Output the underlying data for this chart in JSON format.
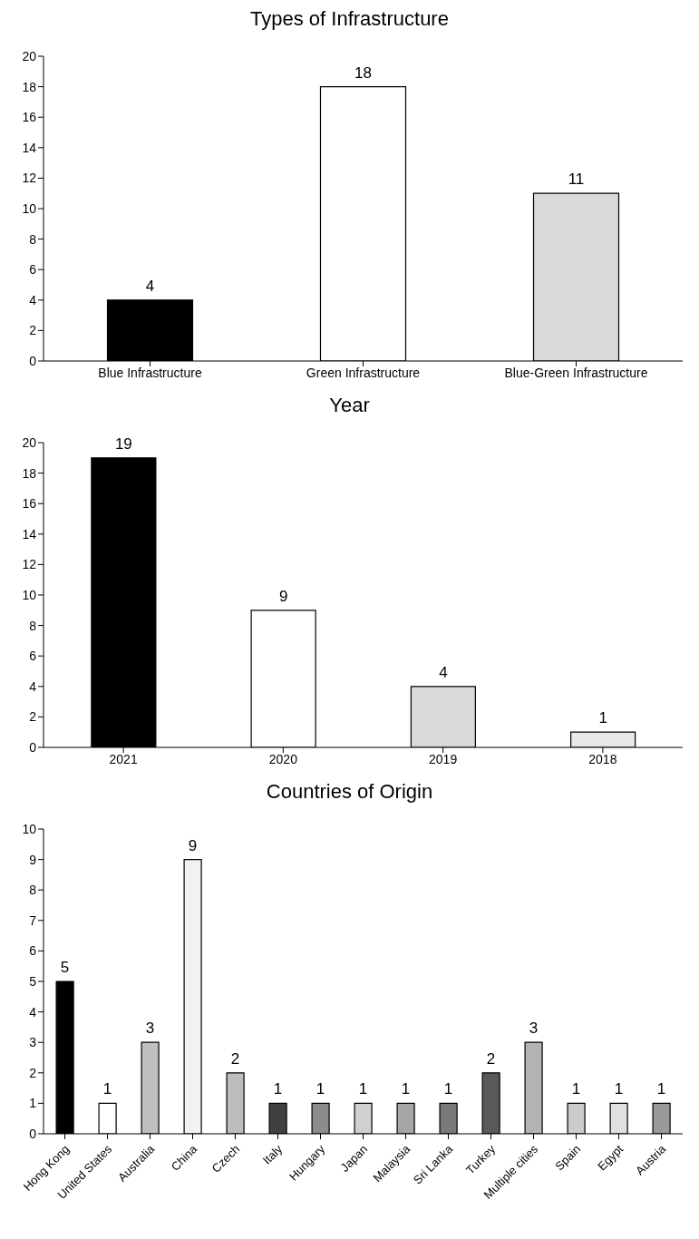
{
  "chart_data": [
    {
      "type": "bar",
      "title": "Types of Infrastructure",
      "categories": [
        "Blue Infrastructure",
        "Green Infrastructure",
        "Blue-Green Infrastructure"
      ],
      "values": [
        4,
        18,
        11
      ],
      "colors": [
        "#000000",
        "#ffffff",
        "#d9d9d9"
      ],
      "ylim": [
        0,
        20
      ],
      "yticks": [
        0,
        2,
        4,
        6,
        8,
        10,
        12,
        14,
        16,
        18,
        20
      ],
      "data_labels": true
    },
    {
      "type": "bar",
      "title": "Year",
      "categories": [
        "2021",
        "2020",
        "2019",
        "2018"
      ],
      "values": [
        19,
        9,
        4,
        1
      ],
      "colors": [
        "#000000",
        "#ffffff",
        "#d9d9d9",
        "#e8e8e8"
      ],
      "ylim": [
        0,
        20
      ],
      "yticks": [
        0,
        2,
        4,
        6,
        8,
        10,
        12,
        14,
        16,
        18,
        20
      ],
      "data_labels": true
    },
    {
      "type": "bar",
      "title": "Countries of Origin",
      "categories": [
        "Hong Kong",
        "United States",
        "Australia",
        "China",
        "Czech",
        "Italy",
        "Hungary",
        "Japan",
        "Malaysia",
        "Sri Lanka",
        "Turkey",
        "Multiple cities",
        "Spain",
        "Egypt",
        "Austria"
      ],
      "values": [
        5,
        1,
        3,
        9,
        2,
        1,
        1,
        1,
        1,
        1,
        2,
        3,
        1,
        1,
        1
      ],
      "colors": [
        "#000000",
        "#ffffff",
        "#bfbfbf",
        "#f2f2f2",
        "#bdbdbd",
        "#404040",
        "#8c8c8c",
        "#d0d0d0",
        "#a6a6a6",
        "#7a7a7a",
        "#595959",
        "#b3b3b3",
        "#cccccc",
        "#e0e0e0",
        "#999999"
      ],
      "ylim": [
        0,
        10
      ],
      "yticks": [
        0,
        1,
        2,
        3,
        4,
        5,
        6,
        7,
        8,
        9,
        10
      ],
      "data_labels": true
    }
  ]
}
